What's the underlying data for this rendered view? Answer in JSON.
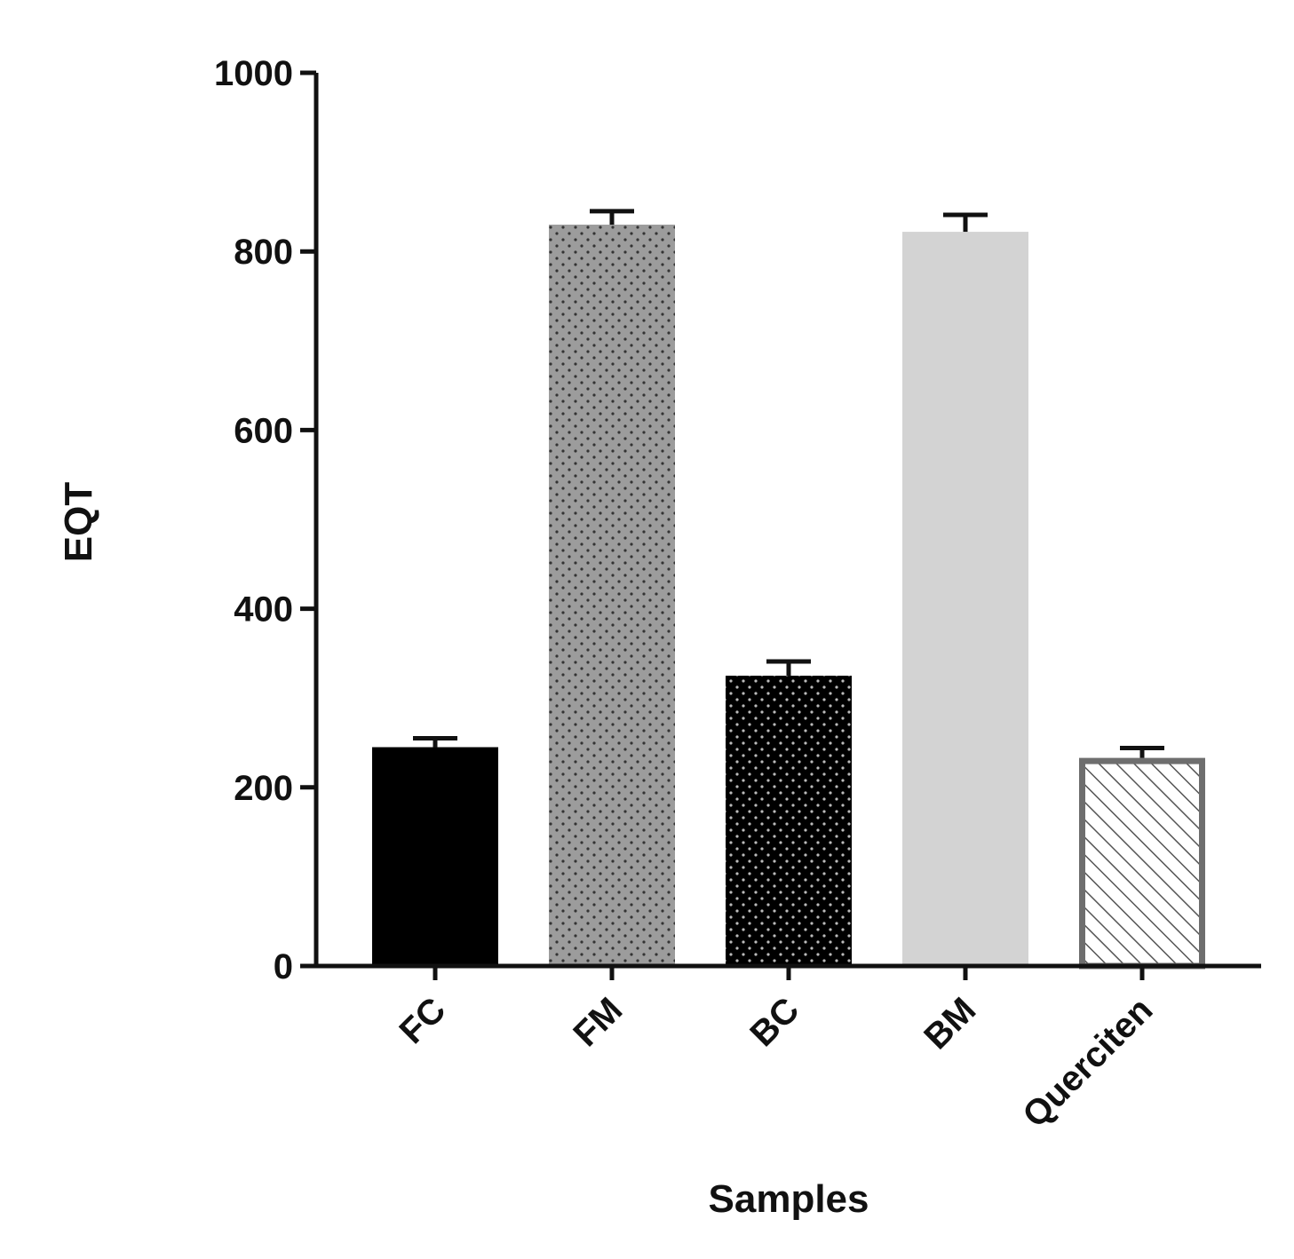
{
  "chart_data": {
    "type": "bar",
    "title": "",
    "xlabel": "Samples",
    "ylabel": "EQT",
    "ylim": [
      0,
      1000
    ],
    "yticks": [
      0,
      200,
      400,
      600,
      800,
      1000
    ],
    "categories": [
      "FC",
      "FM",
      "BC",
      "BM",
      "Querciten"
    ],
    "values": [
      245,
      830,
      325,
      822,
      233
    ],
    "errors": [
      10,
      15,
      16,
      19,
      11
    ],
    "grid": false,
    "legend": "none",
    "bar_styles": [
      {
        "fill": "#000000",
        "pattern": "solid",
        "stroke": "#000000"
      },
      {
        "fill": "#9c9c9c",
        "pattern": "dots-dark",
        "stroke": "#9c9c9c"
      },
      {
        "fill": "#000000",
        "pattern": "dots-light",
        "stroke": "#000000"
      },
      {
        "fill": "#d3d3d3",
        "pattern": "solid",
        "stroke": "#d3d3d3"
      },
      {
        "fill": "#ffffff",
        "pattern": "diagonal-hatch",
        "stroke": "#6e6e6e"
      }
    ]
  }
}
